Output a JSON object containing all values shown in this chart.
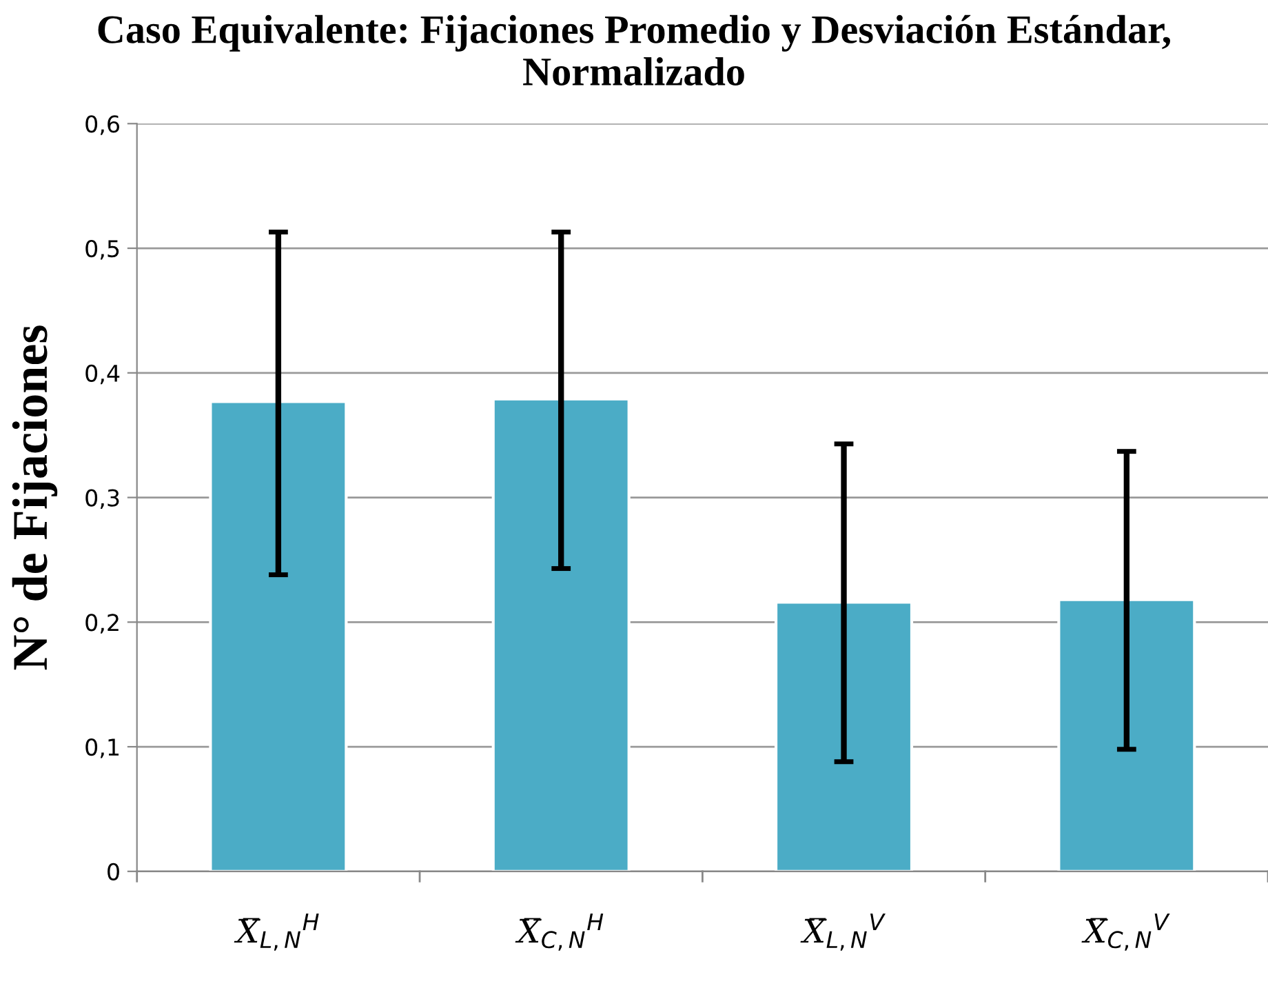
{
  "chart_data": {
    "type": "bar",
    "title": "Caso Equivalente: Fijaciones Promedio y Desviación Estándar, Normalizado",
    "ylabel": "N° de Fijaciones",
    "categories": [
      "X̅$_{L,N}$$^{H}$",
      "X̅$_{C,N}$$^{H}$",
      "X̅$_{L,N}$$^{V}$",
      "X̅$_{C,N}$$^{V}$"
    ],
    "values": [
      0.377,
      0.379,
      0.216,
      0.218
    ],
    "errors": [
      [
        0.238,
        0.513
      ],
      [
        0.243,
        0.513
      ],
      [
        0.088,
        0.343
      ],
      [
        0.098,
        0.337
      ]
    ],
    "color": "#4bacc6",
    "ylim": [
      0,
      0.6
    ],
    "yticks": [
      0,
      {
        "value": 0.1,
        "label": "0,1"
      },
      {
        "value": 0.2,
        "label": "0,2"
      },
      {
        "value": 0.3,
        "label": "0,3"
      },
      {
        "value": 0.4,
        "label": "0,4"
      },
      {
        "value": 0.5,
        "label": "0,5"
      },
      {
        "value": 0.6,
        "label": "0,6"
      }
    ],
    "grid": "y"
  }
}
